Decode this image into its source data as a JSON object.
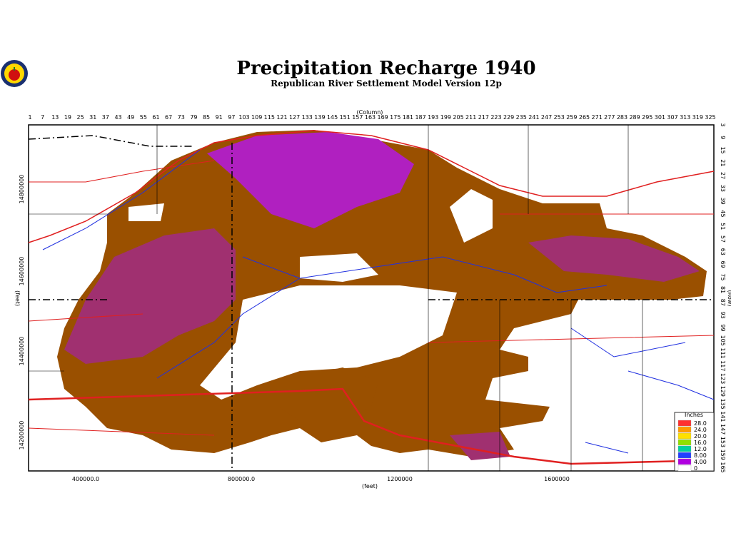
{
  "header": {
    "title": "Precipitation Recharge 1940",
    "subtitle": "Republican River Settlement Model Version 12p"
  },
  "axes": {
    "column_title": "(Column)",
    "columns": [
      1,
      7,
      13,
      19,
      25,
      31,
      37,
      43,
      49,
      55,
      61,
      67,
      73,
      79,
      85,
      91,
      97,
      103,
      109,
      115,
      121,
      127,
      133,
      139,
      145,
      151,
      157,
      163,
      169,
      175,
      181,
      187,
      193,
      199,
      205,
      211,
      217,
      223,
      229,
      235,
      241,
      247,
      253,
      259,
      265,
      271,
      277,
      283,
      289,
      295,
      301,
      307,
      313,
      319,
      325
    ],
    "row_title": "(Row)",
    "rows": [
      3,
      9,
      15,
      21,
      27,
      33,
      39,
      45,
      51,
      57,
      63,
      69,
      75,
      81,
      87,
      93,
      99,
      105,
      111,
      117,
      123,
      129,
      135,
      141,
      147,
      153,
      159,
      165
    ],
    "y_feet_title": "(feet)",
    "y_feet": [
      "14800000",
      "14600000",
      "14400000",
      "14200000"
    ],
    "x_feet_title": "(feet)",
    "x_feet": [
      "400000.0",
      "800000.0",
      "1200000",
      "1600000"
    ]
  },
  "legend": {
    "title": "Inches",
    "items": [
      {
        "label": "28.0",
        "color": "#ff3030"
      },
      {
        "label": "24.0",
        "color": "#ff9a00"
      },
      {
        "label": "20.0",
        "color": "#ffe000"
      },
      {
        "label": "16.0",
        "color": "#90e000"
      },
      {
        "label": "12.0",
        "color": "#00d0a0"
      },
      {
        "label": "8.00",
        "color": "#2040ff"
      },
      {
        "label": "4.00",
        "color": "#b000e0"
      },
      {
        "label": "0",
        "color": "#ffffff"
      }
    ]
  }
}
